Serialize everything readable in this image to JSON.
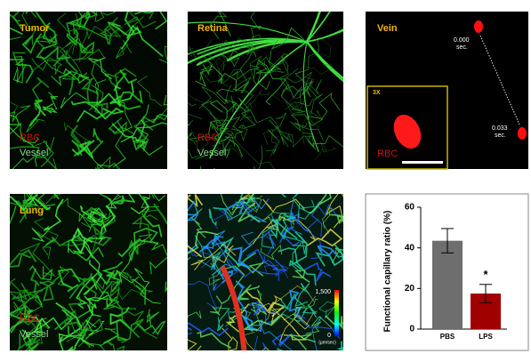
{
  "panels": [
    {
      "label": "Tumor",
      "legend": [
        "RBC",
        "Vessel"
      ]
    },
    {
      "label": "Retina",
      "legend": [
        "RBC",
        "Vessel"
      ]
    },
    {
      "label": "Lung",
      "legend": [
        "RBC",
        "Vessel"
      ]
    }
  ],
  "vein": {
    "label": "Vein",
    "times": [
      {
        "value": "0.000",
        "unit": "sec."
      },
      {
        "value": "0.033",
        "unit": "sec."
      }
    ],
    "inset_zoom": "3X",
    "inset_label": "RBC"
  },
  "flow": {
    "colorbar_max": "1,500",
    "colorbar_min": "0",
    "colorbar_unit": "(µm/sec)"
  },
  "chart_data": {
    "type": "bar",
    "ylabel": "Functional capillary ratio (%)",
    "categories": [
      "PBS",
      "LPS"
    ],
    "values": [
      43.5,
      17.5
    ],
    "errors": [
      6,
      4.5
    ],
    "colors": [
      "#6e6e6e",
      "#a00000"
    ],
    "ylim": [
      0,
      60
    ],
    "yticks": [
      0,
      20,
      40,
      60
    ],
    "annotations": [
      {
        "category": 1,
        "text": "*"
      }
    ]
  }
}
